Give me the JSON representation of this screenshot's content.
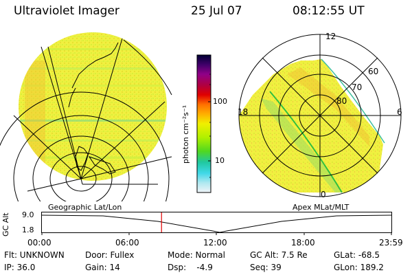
{
  "header": {
    "instrument": "Ultraviolet Imager",
    "date": "25 Jul 07",
    "time": "08:12:55 UT"
  },
  "colorbar": {
    "unit_label": "photon cm⁻²s⁻¹",
    "ticks": [
      "100",
      "10"
    ],
    "colors": [
      "#000033",
      "#2a0050",
      "#600080",
      "#90008a",
      "#b00040",
      "#d80010",
      "#ff6600",
      "#ffaa00",
      "#e8e800",
      "#c8f000",
      "#80e000",
      "#40d030",
      "#20c8a0",
      "#40d8e0",
      "#a0e8f0",
      "#e8f4f8"
    ]
  },
  "geo_panel": {
    "label": "Geographic Lat/Lon"
  },
  "polar_panel": {
    "label": "Apex MLat/MLT",
    "mlt_labels": {
      "top": "12",
      "left": "18",
      "right": "6",
      "bottom": "0"
    },
    "lat_labels": [
      "80",
      "70",
      "60"
    ]
  },
  "altitude_plot": {
    "ylabel": "GC Alt",
    "yticks": [
      "9.0",
      "1.8"
    ],
    "xticks": [
      "00:00",
      "06:00",
      "12:00",
      "18:00",
      "23:59"
    ],
    "marker_time_hours": 8.215
  },
  "info": {
    "flt": "Flt: UNKNOWN",
    "door": "Door: Fullex",
    "mode": "Mode: Normal",
    "gcalt": "GC Alt: 7.5 Re",
    "glat": "GLat: -68.5",
    "ip": "IP: 36.0",
    "gain": "Gain: 14",
    "dsp": "Dsp:    -4.9",
    "seq": "Seq: 39",
    "glon": "GLon: 189.2"
  }
}
